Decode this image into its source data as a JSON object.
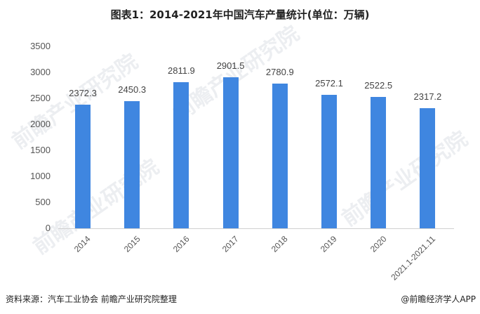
{
  "title": "图表1：2014-2021年中国汽车产量统计(单位：万辆)",
  "source": "资料来源：汽车工业协会 前瞻产业研究院整理",
  "credit": "@前瞻经济学人APP",
  "watermark": "前瞻产业研究院",
  "colors": {
    "bar": "#3f86e0",
    "axis": "#d0d0d0"
  },
  "y_ticks": [
    "3500",
    "3000",
    "2500",
    "2000",
    "1500",
    "1000",
    "500",
    "0"
  ],
  "chart_data": {
    "type": "bar",
    "title": "图表1：2014-2021年中国汽车产量统计(单位：万辆)",
    "xlabel": "",
    "ylabel": "",
    "ylim": [
      0,
      3500
    ],
    "yticks": [
      0,
      500,
      1000,
      1500,
      2000,
      2500,
      3000,
      3500
    ],
    "grid": false,
    "legend": null,
    "categories": [
      "2014",
      "2015",
      "2016",
      "2017",
      "2018",
      "2019",
      "2020",
      "2021.1-2021.11"
    ],
    "values": [
      2372.3,
      2450.3,
      2811.9,
      2901.5,
      2780.9,
      2572.1,
      2522.5,
      2317.2
    ],
    "value_labels": [
      "2372.3",
      "2450.3",
      "2811.9",
      "2901.5",
      "2780.9",
      "2572.1",
      "2522.5",
      "2317.2"
    ],
    "unit": "万辆"
  }
}
